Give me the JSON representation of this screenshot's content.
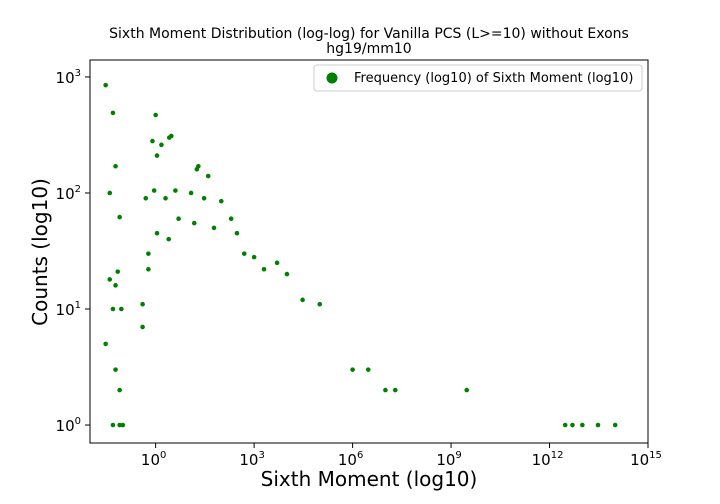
{
  "chart_data": {
    "type": "scatter",
    "title": "Sixth Moment Distribution (log-log) for Vanilla PCS (L>=10) without Exons",
    "subtitle": "hg19/mm10",
    "xlabel": "Sixth Moment (log10)",
    "ylabel": "Counts (log10)",
    "x_scale": "log",
    "y_scale": "log",
    "xlim": [
      0.01,
      1000000000000000.0
    ],
    "ylim": [
      0.7,
      1400
    ],
    "x_ticks": [
      {
        "base": "10",
        "exp": "0",
        "value": 1
      },
      {
        "base": "10",
        "exp": "3",
        "value": 1000
      },
      {
        "base": "10",
        "exp": "6",
        "value": 1000000
      },
      {
        "base": "10",
        "exp": "9",
        "value": 1000000000
      },
      {
        "base": "10",
        "exp": "12",
        "value": 1000000000000
      },
      {
        "base": "10",
        "exp": "15",
        "value": 1000000000000000
      }
    ],
    "y_ticks": [
      {
        "base": "10",
        "exp": "0",
        "value": 1
      },
      {
        "base": "10",
        "exp": "1",
        "value": 10
      },
      {
        "base": "10",
        "exp": "2",
        "value": 100
      },
      {
        "base": "10",
        "exp": "3",
        "value": 1000
      }
    ],
    "legend": {
      "position": "upper-right"
    },
    "grid": false,
    "series": [
      {
        "name": "Frequency (log10) of Sixth Moment (log10)",
        "color": "#008000",
        "marker": "circle",
        "points": [
          [
            0.03,
            850
          ],
          [
            0.05,
            490
          ],
          [
            0.06,
            170
          ],
          [
            0.04,
            100
          ],
          [
            0.08,
            62
          ],
          [
            0.04,
            18
          ],
          [
            0.07,
            21
          ],
          [
            0.06,
            16
          ],
          [
            0.05,
            10
          ],
          [
            0.09,
            10
          ],
          [
            0.03,
            5
          ],
          [
            0.06,
            3
          ],
          [
            0.08,
            2
          ],
          [
            0.05,
            1
          ],
          [
            0.08,
            1
          ],
          [
            0.1,
            1
          ],
          [
            1,
            470
          ],
          [
            0.8,
            280
          ],
          [
            1.5,
            260
          ],
          [
            1.1,
            210
          ],
          [
            3,
            310
          ],
          [
            2.6,
            300
          ],
          [
            20,
            170
          ],
          [
            18,
            160
          ],
          [
            40,
            140
          ],
          [
            0.9,
            105
          ],
          [
            0.5,
            90
          ],
          [
            2,
            90
          ],
          [
            4,
            105
          ],
          [
            12,
            100
          ],
          [
            30,
            90
          ],
          [
            100,
            85
          ],
          [
            0.6,
            30
          ],
          [
            0.6,
            22
          ],
          [
            1.1,
            45
          ],
          [
            2.5,
            40
          ],
          [
            5,
            60
          ],
          [
            15,
            55
          ],
          [
            60,
            50
          ],
          [
            200,
            60
          ],
          [
            300,
            45
          ],
          [
            500,
            30
          ],
          [
            1000,
            28
          ],
          [
            2000,
            22
          ],
          [
            5000,
            25
          ],
          [
            10000,
            20
          ],
          [
            30000,
            12
          ],
          [
            100000,
            11
          ],
          [
            0.4,
            11
          ],
          [
            0.4,
            7
          ],
          [
            1000000,
            3
          ],
          [
            3000000,
            3
          ],
          [
            10000000,
            2
          ],
          [
            20000000,
            2
          ],
          [
            3000000000,
            2
          ],
          [
            3000000000000,
            1
          ],
          [
            5000000000000,
            1
          ],
          [
            10000000000000,
            1
          ],
          [
            30000000000000,
            1
          ],
          [
            100000000000000,
            1
          ]
        ]
      }
    ]
  }
}
